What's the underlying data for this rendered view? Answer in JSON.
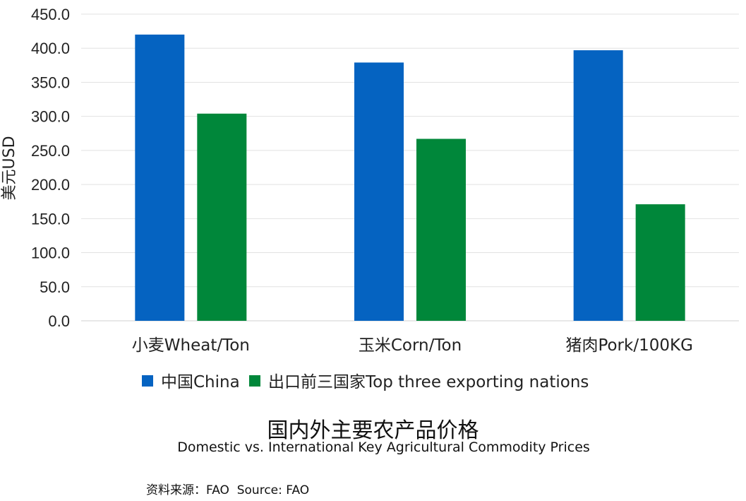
{
  "chart_data": {
    "type": "bar",
    "title": "国内外主要农产品价格",
    "subtitle": "Domestic vs. International Key Agricultural Commodity Prices",
    "ylabel": "美元USD",
    "xlabel": "",
    "ylim": [
      0,
      450
    ],
    "yticks": [
      "0.0",
      "50.0",
      "100.0",
      "150.0",
      "200.0",
      "250.0",
      "300.0",
      "350.0",
      "400.0",
      "450.0"
    ],
    "categories": [
      "小麦Wheat/Ton",
      "玉米Corn/Ton",
      "猪肉Pork/100KG"
    ],
    "series": [
      {
        "name": "中国China",
        "color": "#0563C1",
        "values": [
          420,
          379,
          397
        ]
      },
      {
        "name": "出口前三国家Top three exporting nations",
        "color": "#00873A",
        "values": [
          304,
          267,
          171
        ]
      }
    ],
    "grid": true,
    "legend_position": "bottom",
    "source": "资料来源：FAO  Source: FAO"
  }
}
